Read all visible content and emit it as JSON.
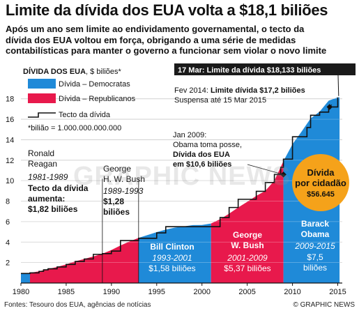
{
  "header": {
    "title": "Limite da dívida dos EUA volta a $18,1 biliões",
    "subtitle_lines": [
      "Após um ano sem limite ao endividamento governamental, o tecto da",
      "dívida dos EUA voltou em força, obrigando a uma série de medidas",
      "contabilísticas para manter o governo a funcionar sem violar o novo limite"
    ]
  },
  "chart_data": {
    "type": "area",
    "title": "",
    "ylabel_bold": "DÍVIDA DOS EUA",
    "ylabel_rest": ", $ biliões*",
    "xlim": [
      1980,
      2015.5
    ],
    "ylim": [
      0,
      19
    ],
    "y_ticks": [
      2,
      4,
      6,
      8,
      10,
      12,
      14,
      16,
      18
    ],
    "x_ticks": [
      1980,
      1985,
      1990,
      1995,
      2000,
      2005,
      2010,
      2015
    ],
    "grid": true,
    "legend": {
      "placement": "top-left",
      "items": [
        {
          "label": "Dívida – Democratas",
          "color": "#1f8ad8"
        },
        {
          "label": "Dívida – Republicanos",
          "color": "#e8194c"
        },
        {
          "label": "Tecto da dívida",
          "color": "#111111"
        }
      ],
      "note": "*bilião = 1.000.000.000.000"
    },
    "series": [
      {
        "name": "Dívida",
        "x": [
          1980,
          1981,
          1982,
          1983,
          1984,
          1985,
          1986,
          1987,
          1988,
          1989,
          1990,
          1991,
          1992,
          1993,
          1994,
          1995,
          1996,
          1997,
          1998,
          1999,
          2000,
          2001,
          2002,
          2003,
          2004,
          2005,
          2006,
          2007,
          2008,
          2009,
          2010,
          2011,
          2012,
          2013,
          2014,
          2015
        ],
        "values": [
          0.9,
          1.0,
          1.14,
          1.37,
          1.57,
          1.82,
          2.12,
          2.35,
          2.6,
          2.86,
          3.23,
          3.67,
          4.06,
          4.41,
          4.69,
          4.97,
          5.22,
          5.41,
          5.53,
          5.66,
          5.67,
          5.81,
          6.23,
          6.78,
          7.38,
          7.93,
          8.51,
          9.01,
          10.0,
          11.91,
          13.56,
          14.79,
          16.07,
          16.74,
          17.82,
          18.13
        ]
      },
      {
        "name": "Tecto da dívida",
        "x": [
          1980,
          1981,
          1982,
          1982.5,
          1983,
          1984,
          1985,
          1986,
          1987,
          1988,
          1989,
          1990,
          1991,
          1993,
          1995,
          1996,
          2002,
          2003,
          2004,
          2006,
          2007,
          2008,
          2008.7,
          2009,
          2010,
          2011,
          2011.6,
          2012,
          2013,
          2014,
          2015
        ],
        "values": [
          0.93,
          0.99,
          1.14,
          1.29,
          1.39,
          1.57,
          1.82,
          2.11,
          2.35,
          2.8,
          2.87,
          3.12,
          4.15,
          4.37,
          4.9,
          5.5,
          6.4,
          7.38,
          8.18,
          8.96,
          9.82,
          10.6,
          11.3,
          12.1,
          14.29,
          14.29,
          15.19,
          16.39,
          16.7,
          17.2,
          18.13
        ]
      }
    ],
    "presidencies": [
      {
        "name_lines": [
          "Ronald",
          "Reagan"
        ],
        "years": "1981-1989",
        "party": "R",
        "start": 1981,
        "end": 1989,
        "note_lines": [
          "Tecto da dívida",
          "aumenta:",
          "$1,82 biliões"
        ]
      },
      {
        "name_lines": [
          "George",
          "H. W. Bush"
        ],
        "years": "1989-1993",
        "party": "R",
        "start": 1989,
        "end": 1993,
        "note_lines": [
          "$1,28",
          "biliões"
        ]
      },
      {
        "name_lines": [
          "Bill Clinton"
        ],
        "years": "1993-2001",
        "party": "D",
        "start": 1993,
        "end": 2001,
        "note_lines": [
          "$1,58 biliões"
        ]
      },
      {
        "name_lines": [
          "George",
          "W. Bush"
        ],
        "years": "2001-2009",
        "party": "R",
        "start": 2001,
        "end": 2009,
        "note_lines": [
          "$5,37 biliões"
        ]
      },
      {
        "name_lines": [
          "Barack",
          "Obama"
        ],
        "years": "2009-2015",
        "party": "D",
        "start": 2009,
        "end": 2015.2,
        "note_lines": [
          "$7,5",
          "biliões"
        ]
      }
    ],
    "annotations": {
      "callout_top": "17 Mar: Limite da dívida $18,133 biliões",
      "feb2014_prefix": "Fev 2014: ",
      "feb2014_bold": "Limite dívida $17,2 biliões",
      "feb2014_line2": "Suspensa até 15 Mar 2015",
      "jan2009_lines": [
        "Jan 2009:",
        "Obama toma posse,"
      ],
      "jan2009_bold_lines": [
        "Dívida dos EUA",
        "em $10,6 biliões"
      ],
      "circle_lines": [
        "Dívida",
        "por cidadão"
      ],
      "circle_value": "$56.645"
    },
    "colors": {
      "democrat": "#1f8ad8",
      "republican": "#e8194c",
      "ceiling": "#111111",
      "circle": "#f5a21a",
      "callout_bg": "#1a1a1a"
    }
  },
  "footer": {
    "source": "Fontes: Tesouro dos EUA, agências de notícias",
    "credit": "© GRAPHIC NEWS",
    "watermark": "GRAPHIC NEWS"
  }
}
